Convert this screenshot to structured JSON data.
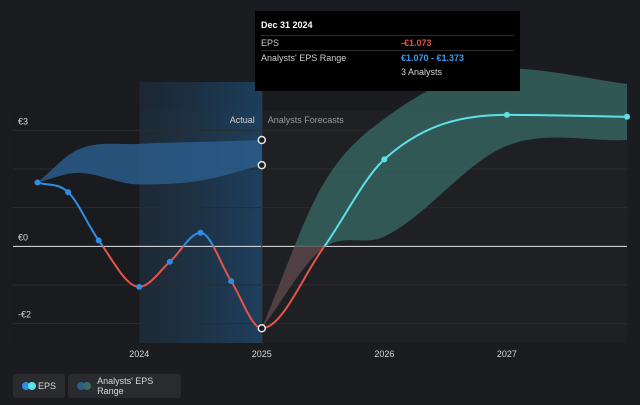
{
  "chart_data": {
    "type": "line",
    "ylim": [
      -2.5,
      3.5
    ],
    "y_ticks": [
      {
        "value": 3,
        "label": "€3"
      },
      {
        "value": 0,
        "label": "€0"
      },
      {
        "value": -2,
        "label": "-€2"
      }
    ],
    "x_ticks": [
      {
        "value": 2024.0,
        "label": "2024"
      },
      {
        "value": 2025.0,
        "label": "2025"
      },
      {
        "value": 2026.0,
        "label": "2026"
      },
      {
        "value": 2027.0,
        "label": "2027"
      }
    ],
    "xlim": [
      2022.97,
      2027.98
    ],
    "divider_x": 2025.0,
    "shaded_x_range": [
      2024.0,
      2025.0
    ],
    "region_labels": {
      "actual": "Actual",
      "forecast": "Analysts Forecasts"
    },
    "series": [
      {
        "name": "EPS",
        "color_positive": "#5ce1e6",
        "color_negative": "#e5534b",
        "color_actual": "#2e8ee6",
        "points": [
          {
            "x": 2023.17,
            "y": 1.65
          },
          {
            "x": 2023.42,
            "y": 1.4
          },
          {
            "x": 2023.67,
            "y": 0.15
          },
          {
            "x": 2024.0,
            "y": -1.05
          },
          {
            "x": 2024.25,
            "y": -0.4
          },
          {
            "x": 2024.5,
            "y": 0.35
          },
          {
            "x": 2024.75,
            "y": -0.9
          },
          {
            "x": 2025.0,
            "y": -2.12
          },
          {
            "x": 2025.5,
            "y": -0.05
          },
          {
            "x": 2026.0,
            "y": 2.25
          },
          {
            "x": 2027.0,
            "y": 3.4
          },
          {
            "x": 2027.98,
            "y": 3.35
          }
        ]
      },
      {
        "name": "Analysts' EPS Range",
        "color": "#3a6b67",
        "range": [
          {
            "x": 2025.0,
            "low": -2.12,
            "high": -2.12
          },
          {
            "x": 2025.5,
            "low": -0.05,
            "high": 1.6
          },
          {
            "x": 2026.0,
            "low": 0.25,
            "high": 3.3
          },
          {
            "x": 2027.0,
            "low": 2.6,
            "high": 4.6
          },
          {
            "x": 2027.98,
            "low": 2.75,
            "high": 4.2
          }
        ]
      },
      {
        "name": "Analysts' EPS Range (past)",
        "color": "#2b5f8e",
        "range": [
          {
            "x": 2023.17,
            "low": 1.65,
            "high": 1.65
          },
          {
            "x": 2023.5,
            "low": 1.9,
            "high": 2.5
          },
          {
            "x": 2024.0,
            "low": 1.6,
            "high": 2.65
          },
          {
            "x": 2024.5,
            "low": 1.7,
            "high": 2.7
          },
          {
            "x": 2025.0,
            "low": 2.1,
            "high": 2.75
          }
        ],
        "markers": [
          {
            "x": 2025.0,
            "y": 2.75
          },
          {
            "x": 2025.0,
            "y": 2.1
          }
        ]
      }
    ],
    "tooltip": {
      "date": "Dec 31 2024",
      "rows": [
        {
          "label": "EPS",
          "value": "-€1.073",
          "color": "#e5534b"
        },
        {
          "label": "Analysts' EPS Range",
          "value": "€1.070 - €1.373",
          "color": "#3b9cf0"
        },
        {
          "label": "",
          "value": "3 Analysts",
          "color": "#d8d8d8"
        }
      ]
    }
  },
  "legend": {
    "items": [
      {
        "label": "EPS",
        "dot_a": "#2e8ee6",
        "dot_b": "#5ce1e6"
      },
      {
        "label": "Analysts' EPS Range",
        "dot_a": "#2b5f8e",
        "dot_b": "#3a6b67"
      }
    ]
  }
}
